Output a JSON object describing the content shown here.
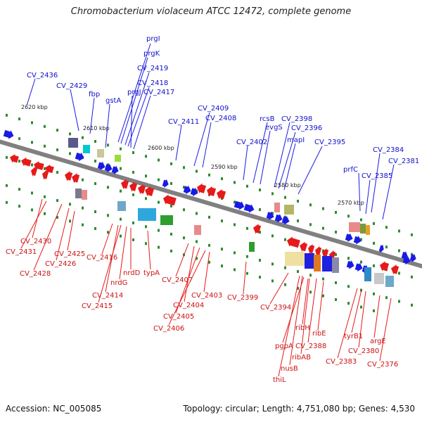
{
  "title": "Chromobacterium violaceum ATCC 12472, complete genome",
  "accession": "Accession: NC_005085",
  "summary": "Topology: circular; Length: 4,751,080 bp; Genes: 4,530",
  "colors": {
    "forward": "#1a1ae6",
    "reverse": "#e61a1a",
    "backbone": "#808080",
    "dot": "#2e8b2e"
  },
  "scale_labels": [
    "2620 kbp",
    "2610 kbp",
    "2600 kbp",
    "2590 kbp",
    "2580 kbp",
    "2570 kbp"
  ],
  "top_genes": [
    "CV_2436",
    "CV_2429",
    "fbp",
    "gstA",
    "prgI",
    "prgK",
    "CV_2419",
    "CV_2418",
    "prgJ",
    "CV_2417",
    "CV_2411",
    "CV_2409",
    "CV_2408",
    "CV_2402",
    "rcsB",
    "evgS",
    "CV_2398",
    "CV_2396",
    "mapI",
    "CV_2395",
    "prfC",
    "CV_2384",
    "CV_2385",
    "CV_2381"
  ],
  "bottom_genes": [
    "CV_2430",
    "CV_2431",
    "CV_2428",
    "CV_2426",
    "CV_2425",
    "CV_2416",
    "nrdG",
    "nrdD",
    "typA",
    "CV_2414",
    "CV_2415",
    "CV_2407",
    "CV_2404",
    "CV_2405",
    "CV_2406",
    "CV_2403",
    "CV_2399",
    "CV_2394",
    "ribH",
    "ribE",
    "pgpA",
    "CV_2388",
    "ribAB",
    "nusB",
    "thiL",
    "tyrB1",
    "argE",
    "CV_2380",
    "CV_2383",
    "CV_2376"
  ]
}
